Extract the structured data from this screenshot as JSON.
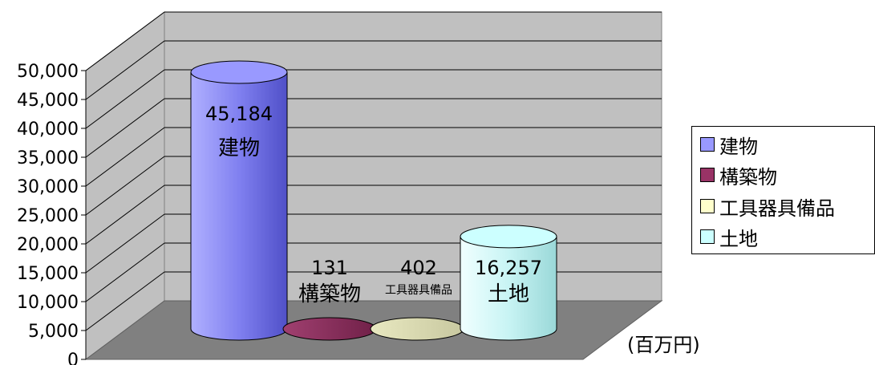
{
  "chart_data": {
    "type": "bar",
    "categories": [
      "建物",
      "構築物",
      "工具器具備品",
      "土地"
    ],
    "values": [
      45184,
      131,
      402,
      16257
    ],
    "value_labels": [
      "45,184",
      "131",
      "402",
      "16,257"
    ],
    "ylim": [
      0,
      50000
    ],
    "y_ticks": [
      "0",
      "5,000",
      "10,000",
      "15,000",
      "20,000",
      "25,000",
      "30,000",
      "35,000",
      "40,000",
      "45,000",
      "50,000"
    ],
    "unit_label": "(百万円)",
    "grid": true,
    "legend_position": "right",
    "colors": [
      "#9999ff",
      "#993366",
      "#ffffcc",
      "#ccffff"
    ]
  },
  "legend": {
    "items": [
      {
        "label": "建物",
        "color": "#9999ff"
      },
      {
        "label": "構築物",
        "color": "#993366"
      },
      {
        "label": "工具器具備品",
        "color": "#ffffcc"
      },
      {
        "label": "土地",
        "color": "#ccffff"
      }
    ]
  }
}
